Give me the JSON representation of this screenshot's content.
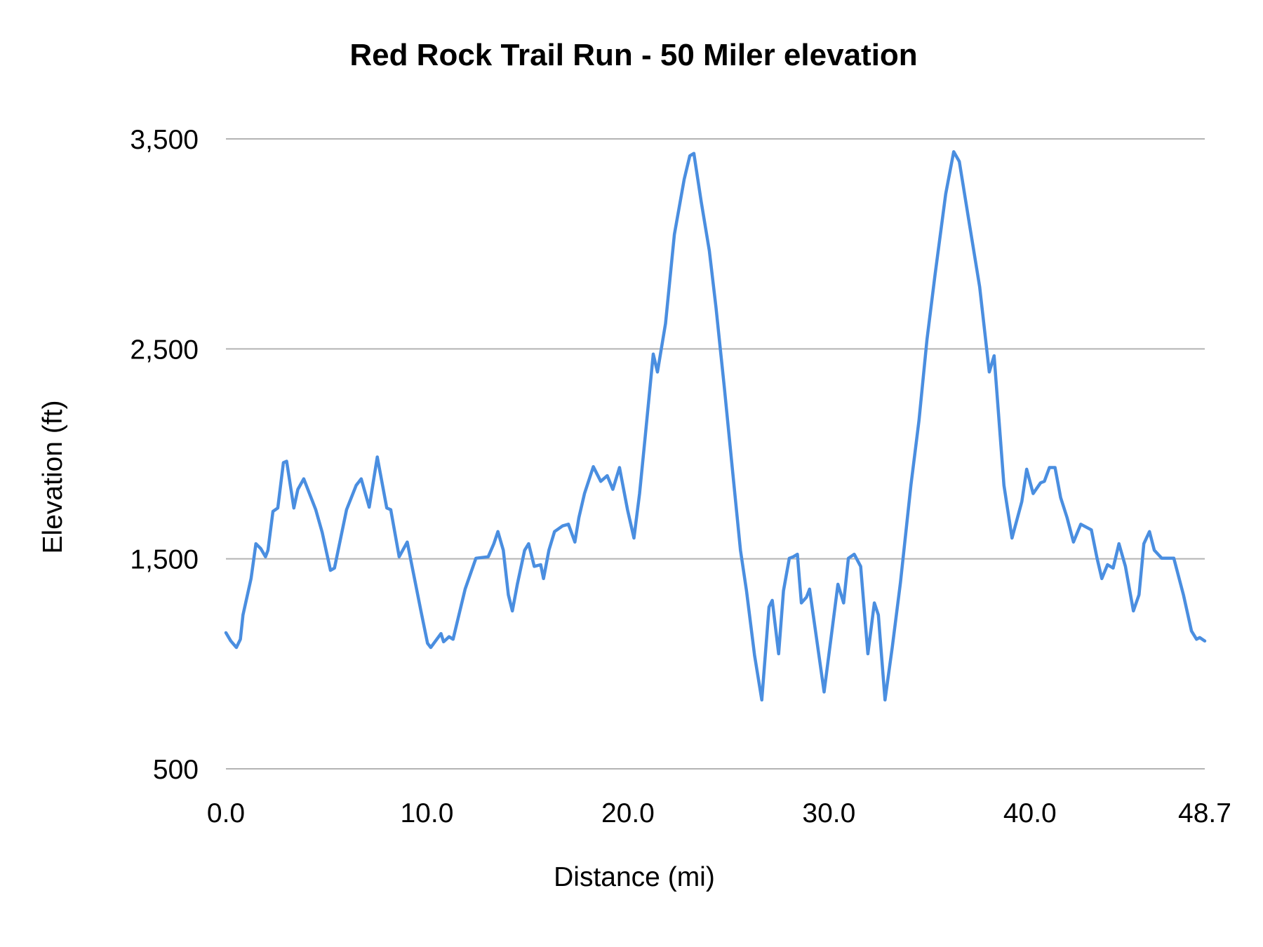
{
  "chart_data": {
    "type": "line",
    "title": "Red Rock Trail Run - 50 Miler elevation",
    "xlabel": "Distance (mi)",
    "ylabel": "Elevation (ft)",
    "xlim": [
      0,
      48.7
    ],
    "ylim": [
      500,
      3500
    ],
    "x_ticks": [
      "0.0",
      "10.0",
      "20.0",
      "30.0",
      "40.0",
      "48.7"
    ],
    "x_tick_values": [
      0,
      10,
      20,
      30,
      40,
      48.7
    ],
    "y_ticks": [
      "500",
      "1,500",
      "2,500",
      "3,500"
    ],
    "y_tick_values": [
      500,
      1500,
      2500,
      3500
    ],
    "grid": "horizontal",
    "legend": "none",
    "line_color": "#4a8ee0",
    "grid_color": "#b3b3b3",
    "series": [
      {
        "x": [
          0,
          0.24,
          0.52,
          0.72,
          0.85,
          1.25,
          1.49,
          1.73,
          1.97,
          2.09,
          2.34,
          2.58,
          2.86,
          3.02,
          3.38,
          3.58,
          3.87,
          4.47,
          4.79,
          5.2,
          5.4,
          6.0,
          6.48,
          6.73,
          7.13,
          7.53,
          8.0,
          8.2,
          8.62,
          9.02,
          9.3,
          9.7,
          10.03,
          10.19,
          10.7,
          10.83,
          11.1,
          11.3,
          11.9,
          12.44,
          13.05,
          13.33,
          13.53,
          13.8,
          14.05,
          14.25,
          14.5,
          14.86,
          15.06,
          15.34,
          15.66,
          15.8,
          16.07,
          16.35,
          16.75,
          17.04,
          17.36,
          17.56,
          17.84,
          18.28,
          18.65,
          18.97,
          19.25,
          19.58,
          19.98,
          20.3,
          20.58,
          20.86,
          21.26,
          21.47,
          21.87,
          22.31,
          22.8,
          23.08,
          23.28,
          23.65,
          24.05,
          24.38,
          24.8,
          25.2,
          25.6,
          25.9,
          26.3,
          26.66,
          27.02,
          27.18,
          27.5,
          27.74,
          28.03,
          28.23,
          28.43,
          28.63,
          28.88,
          29.04,
          29.76,
          30.45,
          30.73,
          30.97,
          31.26,
          31.58,
          31.94,
          32.26,
          32.46,
          32.79,
          33.15,
          33.56,
          34.08,
          34.48,
          34.88,
          35.28,
          35.81,
          36.21,
          36.49,
          37.01,
          37.5,
          37.98,
          38.22,
          38.71,
          39.11,
          39.6,
          39.84,
          40.16,
          40.53,
          40.72,
          40.97,
          41.25,
          41.53,
          41.85,
          42.17,
          42.53,
          43.06,
          43.34,
          43.58,
          43.86,
          44.14,
          44.43,
          44.75,
          45.15,
          45.43,
          45.67,
          45.95,
          46.19,
          46.56,
          47.16,
          47.64,
          48.04,
          48.29,
          48.45,
          48.7
        ],
        "y": [
          1148,
          1109,
          1078,
          1117,
          1233,
          1406,
          1572,
          1549,
          1510,
          1541,
          1726,
          1742,
          1958,
          1965,
          1742,
          1831,
          1881,
          1734,
          1626,
          1445,
          1456,
          1734,
          1850,
          1881,
          1746,
          1985,
          1742,
          1734,
          1510,
          1580,
          1445,
          1252,
          1098,
          1078,
          1144,
          1105,
          1129,
          1117,
          1356,
          1503,
          1510,
          1572,
          1630,
          1541,
          1329,
          1252,
          1379,
          1541,
          1572,
          1464,
          1472,
          1406,
          1541,
          1630,
          1657,
          1665,
          1580,
          1696,
          1811,
          1939,
          1869,
          1896,
          1831,
          1935,
          1734,
          1599,
          1811,
          2081,
          2475,
          2390,
          2621,
          3045,
          3308,
          3419,
          3431,
          3200,
          2968,
          2698,
          2313,
          1927,
          1541,
          1348,
          1040,
          828,
          1271,
          1302,
          1048,
          1348,
          1503,
          1510,
          1522,
          1290,
          1317,
          1356,
          866,
          1379,
          1290,
          1503,
          1522,
          1464,
          1048,
          1290,
          1233,
          828,
          1078,
          1387,
          1850,
          2158,
          2544,
          2853,
          3238,
          3439,
          3392,
          3084,
          2795,
          2390,
          2467,
          1850,
          1599,
          1773,
          1927,
          1811,
          1862,
          1869,
          1935,
          1935,
          1792,
          1696,
          1580,
          1665,
          1638,
          1503,
          1406,
          1472,
          1456,
          1572,
          1464,
          1252,
          1329,
          1572,
          1630,
          1541,
          1503,
          1503,
          1329,
          1156,
          1117,
          1125,
          1109
        ]
      }
    ]
  }
}
